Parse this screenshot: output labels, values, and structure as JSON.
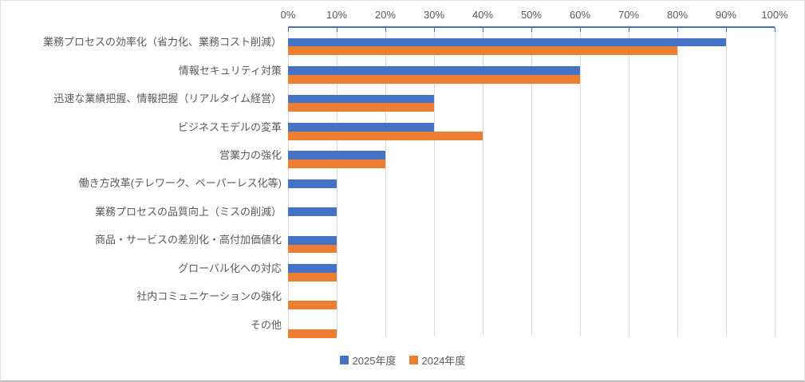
{
  "chart_data": {
    "type": "bar",
    "orientation": "horizontal",
    "title": "",
    "categories": [
      "業務プロセスの効率化（省力化、業務コスト削減）",
      "情報セキュリティ対策",
      "迅速な業績把握、情報把握（リアルタイム経営）",
      "ビジネスモデルの変革",
      "営業力の強化",
      "働き方改革(テレワーク、ペーパーレス化等)",
      "業務プロセスの品質向上（ミスの削減）",
      "商品・サービスの差別化・高付加価値化",
      "グローバル化への対応",
      "社内コミュニケーションの強化",
      "その他"
    ],
    "series": [
      {
        "name": "2025年度",
        "color": "#4472C4",
        "values": [
          90,
          60,
          30,
          30,
          20,
          10,
          10,
          10,
          10,
          0,
          0
        ]
      },
      {
        "name": "2024年度",
        "color": "#ED7D31",
        "values": [
          80,
          60,
          30,
          40,
          20,
          0,
          0,
          10,
          10,
          10,
          10
        ]
      }
    ],
    "x_axis": {
      "position": "top",
      "min": 0,
      "max": 100,
      "unit": "%",
      "ticks": [
        "0%",
        "10%",
        "20%",
        "30%",
        "40%",
        "50%",
        "60%",
        "70%",
        "80%",
        "90%",
        "100%"
      ]
    },
    "grid": true,
    "legend_position": "bottom"
  },
  "colors": {
    "axis_line": "#4472C4",
    "gridline": "#D9D9D9",
    "text": "#595959",
    "background": "#FFFFFF",
    "series_2025": "#4472C4",
    "series_2024": "#ED7D31"
  }
}
